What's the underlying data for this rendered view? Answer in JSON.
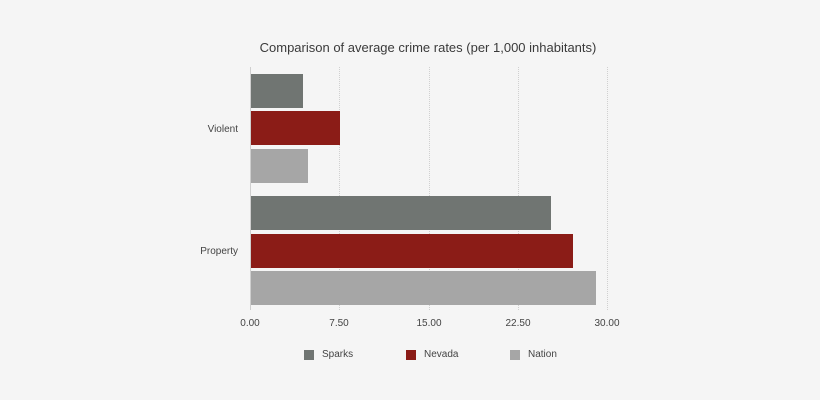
{
  "chart_data": {
    "type": "bar",
    "orientation": "horizontal",
    "title": "Comparison of average crime rates (per 1,000 inhabitants)",
    "xlabel": "",
    "ylabel": "",
    "categories": [
      "Violent",
      "Property"
    ],
    "series": [
      {
        "name": "Sparks",
        "color": "#707572",
        "values": [
          4.4,
          25.2
        ]
      },
      {
        "name": "Nevada",
        "color": "#8b1c17",
        "values": [
          7.45,
          27.1
        ]
      },
      {
        "name": "Nation",
        "color": "#a6a6a6",
        "values": [
          4.8,
          29.0
        ]
      }
    ],
    "xlim": [
      0,
      30
    ],
    "xticks": [
      "0.00",
      "7.50",
      "15.00",
      "22.50",
      "30.00"
    ],
    "grid": true,
    "legend_position": "bottom"
  }
}
